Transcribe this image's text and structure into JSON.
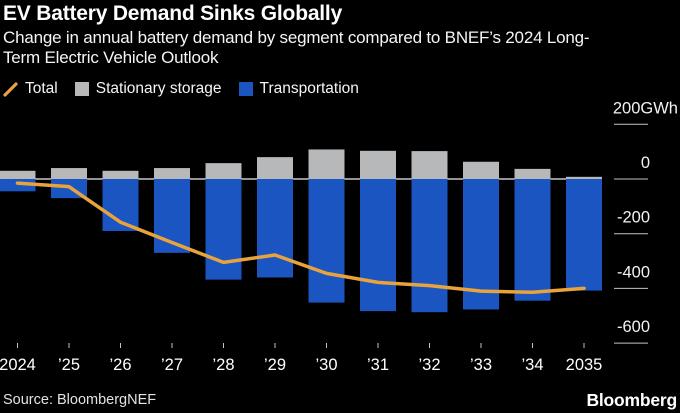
{
  "header": {
    "title": "EV Battery Demand Sinks Globally",
    "subtitle_lines": [
      "Change in annual battery demand by segment compared to BNEF’s 2024 Long-",
      "Term Electric Vehicle Outlook"
    ]
  },
  "legend": {
    "items": [
      {
        "label": "Total",
        "marker": "line",
        "color": "#e8a33c"
      },
      {
        "label": "Stationary storage",
        "marker": "square",
        "color": "#b7b8ba"
      },
      {
        "label": "Transportation",
        "marker": "square",
        "color": "#1a55c2"
      }
    ]
  },
  "chart_data": {
    "type": "bar+line",
    "stacked": true,
    "categories": [
      "2024",
      "’25",
      "’26",
      "’27",
      "’28",
      "’29",
      "’30",
      "’31",
      "’32",
      "’33",
      "’34",
      "2035"
    ],
    "series": [
      {
        "name": "Stationary storage",
        "type": "bar",
        "color": "#b7b8ba",
        "values": [
          30,
          40,
          30,
          40,
          58,
          80,
          108,
          103,
          102,
          63,
          37,
          8
        ]
      },
      {
        "name": "Transportation",
        "type": "bar",
        "color": "#1a55c2",
        "values": [
          -45,
          -70,
          -190,
          -270,
          -368,
          -360,
          -452,
          -483,
          -487,
          -477,
          -445,
          -408
        ]
      },
      {
        "name": "Total",
        "type": "line",
        "color": "#e8a33c",
        "values": [
          -15,
          -28,
          -158,
          -232,
          -305,
          -278,
          -345,
          -378,
          -390,
          -410,
          -414,
          -400
        ]
      }
    ],
    "unit": "GWh",
    "yticks": [
      200,
      0,
      -200,
      -400,
      -600
    ],
    "ytick_labels": [
      "200GWh",
      "0",
      "-200",
      "-400",
      "-600"
    ],
    "ylim": [
      -650,
      230
    ],
    "grid": "zero-line-only",
    "legend_position": "top"
  },
  "footer": {
    "source": "Source: BloombergNEF",
    "brand": "Bloomberg"
  }
}
